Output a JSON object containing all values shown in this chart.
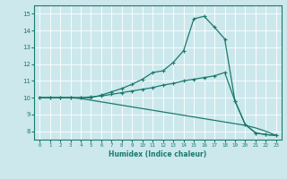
{
  "xlabel": "Humidex (Indice chaleur)",
  "ylabel": "",
  "background_color": "#cce8ec",
  "line_color": "#1a7a6e",
  "grid_color": "#b0d0d8",
  "xlim": [
    -0.5,
    23.5
  ],
  "ylim": [
    7.5,
    15.5
  ],
  "xticks": [
    0,
    1,
    2,
    3,
    4,
    5,
    6,
    7,
    8,
    9,
    10,
    11,
    12,
    13,
    14,
    15,
    16,
    17,
    18,
    19,
    20,
    21,
    22,
    23
  ],
  "yticks": [
    8,
    9,
    10,
    11,
    12,
    13,
    14,
    15
  ],
  "curve1_x": [
    0,
    1,
    2,
    3,
    4,
    5,
    6,
    7,
    8,
    9,
    10,
    11,
    12,
    13,
    14,
    15,
    16,
    17,
    18,
    19,
    20,
    21,
    22,
    23
  ],
  "curve1_y": [
    10.0,
    10.0,
    10.0,
    10.0,
    10.0,
    10.0,
    10.15,
    10.35,
    10.55,
    10.8,
    11.1,
    11.5,
    11.6,
    12.1,
    12.8,
    14.7,
    14.85,
    14.2,
    13.5,
    9.8,
    8.4,
    7.9,
    7.8,
    7.75
  ],
  "curve2_x": [
    0,
    1,
    2,
    3,
    4,
    5,
    6,
    7,
    8,
    9,
    10,
    11,
    12,
    13,
    14,
    15,
    16,
    17,
    18,
    19,
    20,
    21,
    22,
    23
  ],
  "curve2_y": [
    10.0,
    10.0,
    10.0,
    10.0,
    10.0,
    10.05,
    10.1,
    10.2,
    10.3,
    10.4,
    10.5,
    10.6,
    10.75,
    10.85,
    11.0,
    11.1,
    11.2,
    11.3,
    11.5,
    9.8,
    8.4,
    7.9,
    7.8,
    7.75
  ],
  "curve3_x": [
    0,
    1,
    2,
    3,
    4,
    5,
    6,
    7,
    8,
    9,
    10,
    11,
    12,
    13,
    14,
    15,
    16,
    17,
    18,
    19,
    20,
    21,
    22,
    23
  ],
  "curve3_y": [
    10.0,
    10.0,
    10.0,
    10.0,
    9.95,
    9.85,
    9.75,
    9.65,
    9.55,
    9.45,
    9.35,
    9.25,
    9.15,
    9.05,
    8.95,
    8.85,
    8.75,
    8.65,
    8.55,
    8.45,
    8.35,
    8.2,
    8.0,
    7.75
  ]
}
